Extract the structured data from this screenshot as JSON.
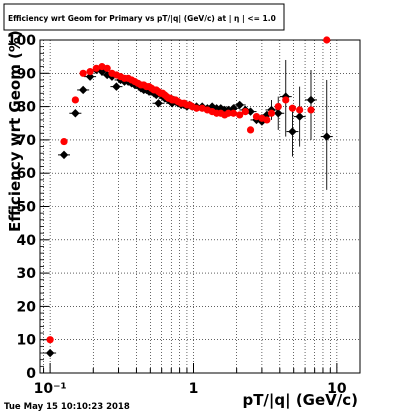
{
  "chart_data": {
    "type": "scatter",
    "title": "Efficiency wrt Geom for Primary vs pT/|q| (GeV/c) at | η | <= 1.0",
    "xlabel": "pT/|q| (GeV/c)",
    "ylabel": "Efficiency wrt Geom (%)",
    "x_scale": "log",
    "xlim": [
      0.085,
      14.5
    ],
    "ylim": [
      0,
      100
    ],
    "y_ticks": [
      0,
      10,
      20,
      30,
      40,
      50,
      60,
      70,
      80,
      90,
      100
    ],
    "y_tick_labels": [
      "0",
      "10",
      "20",
      "30",
      "40",
      "50",
      "60",
      "70",
      "80",
      "90",
      "100"
    ],
    "x_major_ticks": [
      0.1,
      1,
      10
    ],
    "x_tick_labels": [
      "10⁻¹",
      "1",
      "10"
    ],
    "grid": true,
    "timestamp": "Tue May 15 10:10:23 2018",
    "series": [
      {
        "color": "#000000",
        "x": [
          0.1,
          0.125,
          0.15,
          0.17,
          0.19,
          0.21,
          0.23,
          0.25,
          0.27,
          0.29,
          0.31,
          0.33,
          0.35,
          0.37,
          0.39,
          0.41,
          0.43,
          0.45,
          0.47,
          0.49,
          0.51,
          0.53,
          0.55,
          0.57,
          0.59,
          0.61,
          0.63,
          0.65,
          0.67,
          0.69,
          0.71,
          0.73,
          0.75,
          0.78,
          0.82,
          0.86,
          0.9,
          0.94,
          0.98,
          1.05,
          1.15,
          1.25,
          1.35,
          1.45,
          1.55,
          1.65,
          1.75,
          1.9,
          2.1,
          2.3,
          2.5,
          2.75,
          3.0,
          3.25,
          3.5,
          3.9,
          4.4,
          4.9,
          5.5,
          6.6,
          8.5
        ],
        "y": [
          6,
          65.5,
          78,
          85,
          89,
          91,
          90.5,
          89.5,
          89,
          86,
          88,
          87.5,
          87.5,
          87,
          86.5,
          86.5,
          85.5,
          85,
          85,
          84.5,
          85,
          84,
          83.5,
          81,
          84,
          83,
          82.5,
          82.5,
          82,
          81.5,
          81,
          82,
          81.5,
          81,
          80.5,
          80.5,
          80,
          80.5,
          80,
          80,
          80,
          79.5,
          80,
          79.5,
          79.5,
          79,
          79,
          79.5,
          80.5,
          79,
          78.5,
          76,
          75.5,
          77.5,
          79,
          78,
          83,
          72.5,
          77,
          82,
          71
        ]
      },
      {
        "color": "#ff0000",
        "x": [
          0.1,
          0.125,
          0.15,
          0.17,
          0.19,
          0.21,
          0.23,
          0.25,
          0.27,
          0.29,
          0.31,
          0.33,
          0.35,
          0.37,
          0.39,
          0.41,
          0.43,
          0.45,
          0.47,
          0.49,
          0.51,
          0.53,
          0.55,
          0.57,
          0.59,
          0.61,
          0.63,
          0.65,
          0.67,
          0.69,
          0.71,
          0.73,
          0.75,
          0.78,
          0.82,
          0.86,
          0.9,
          0.94,
          0.98,
          1.05,
          1.15,
          1.25,
          1.35,
          1.45,
          1.55,
          1.65,
          1.75,
          1.9,
          2.1,
          2.3,
          2.5,
          2.75,
          3.0,
          3.25,
          3.5,
          3.9,
          4.4,
          4.9,
          5.5,
          6.6,
          8.5
        ],
        "y": [
          10,
          69.5,
          82,
          90,
          90.5,
          91.5,
          92,
          91.5,
          90,
          89.5,
          89,
          88.5,
          88.5,
          88,
          87.5,
          87,
          86.5,
          86.5,
          86,
          86,
          85.5,
          85,
          85,
          84.5,
          84,
          84,
          83.5,
          83,
          82.5,
          82.5,
          82,
          82,
          82,
          81.5,
          81,
          81,
          80.5,
          80.5,
          80,
          79.5,
          79.5,
          79,
          78.5,
          78,
          78,
          77.5,
          78,
          78,
          77.5,
          78.5,
          73,
          77,
          76.5,
          76,
          78,
          80,
          82,
          79.5,
          79,
          79,
          100
        ]
      }
    ],
    "error_bars": [
      {
        "x": 4.4,
        "y": 83,
        "ylo": 71,
        "yhi": 94
      },
      {
        "x": 4.9,
        "y": 72.5,
        "ylo": 65,
        "yhi": 80
      },
      {
        "x": 5.5,
        "y": 77,
        "ylo": 68,
        "yhi": 86
      },
      {
        "x": 6.6,
        "y": 82,
        "ylo": 70,
        "yhi": 91
      },
      {
        "x": 8.5,
        "y": 71,
        "ylo": 55,
        "yhi": 88
      },
      {
        "x": 3.9,
        "y": 78,
        "ylo": 73,
        "yhi": 83
      },
      {
        "x": 3.5,
        "y": 79,
        "ylo": 76,
        "yhi": 82
      }
    ]
  }
}
